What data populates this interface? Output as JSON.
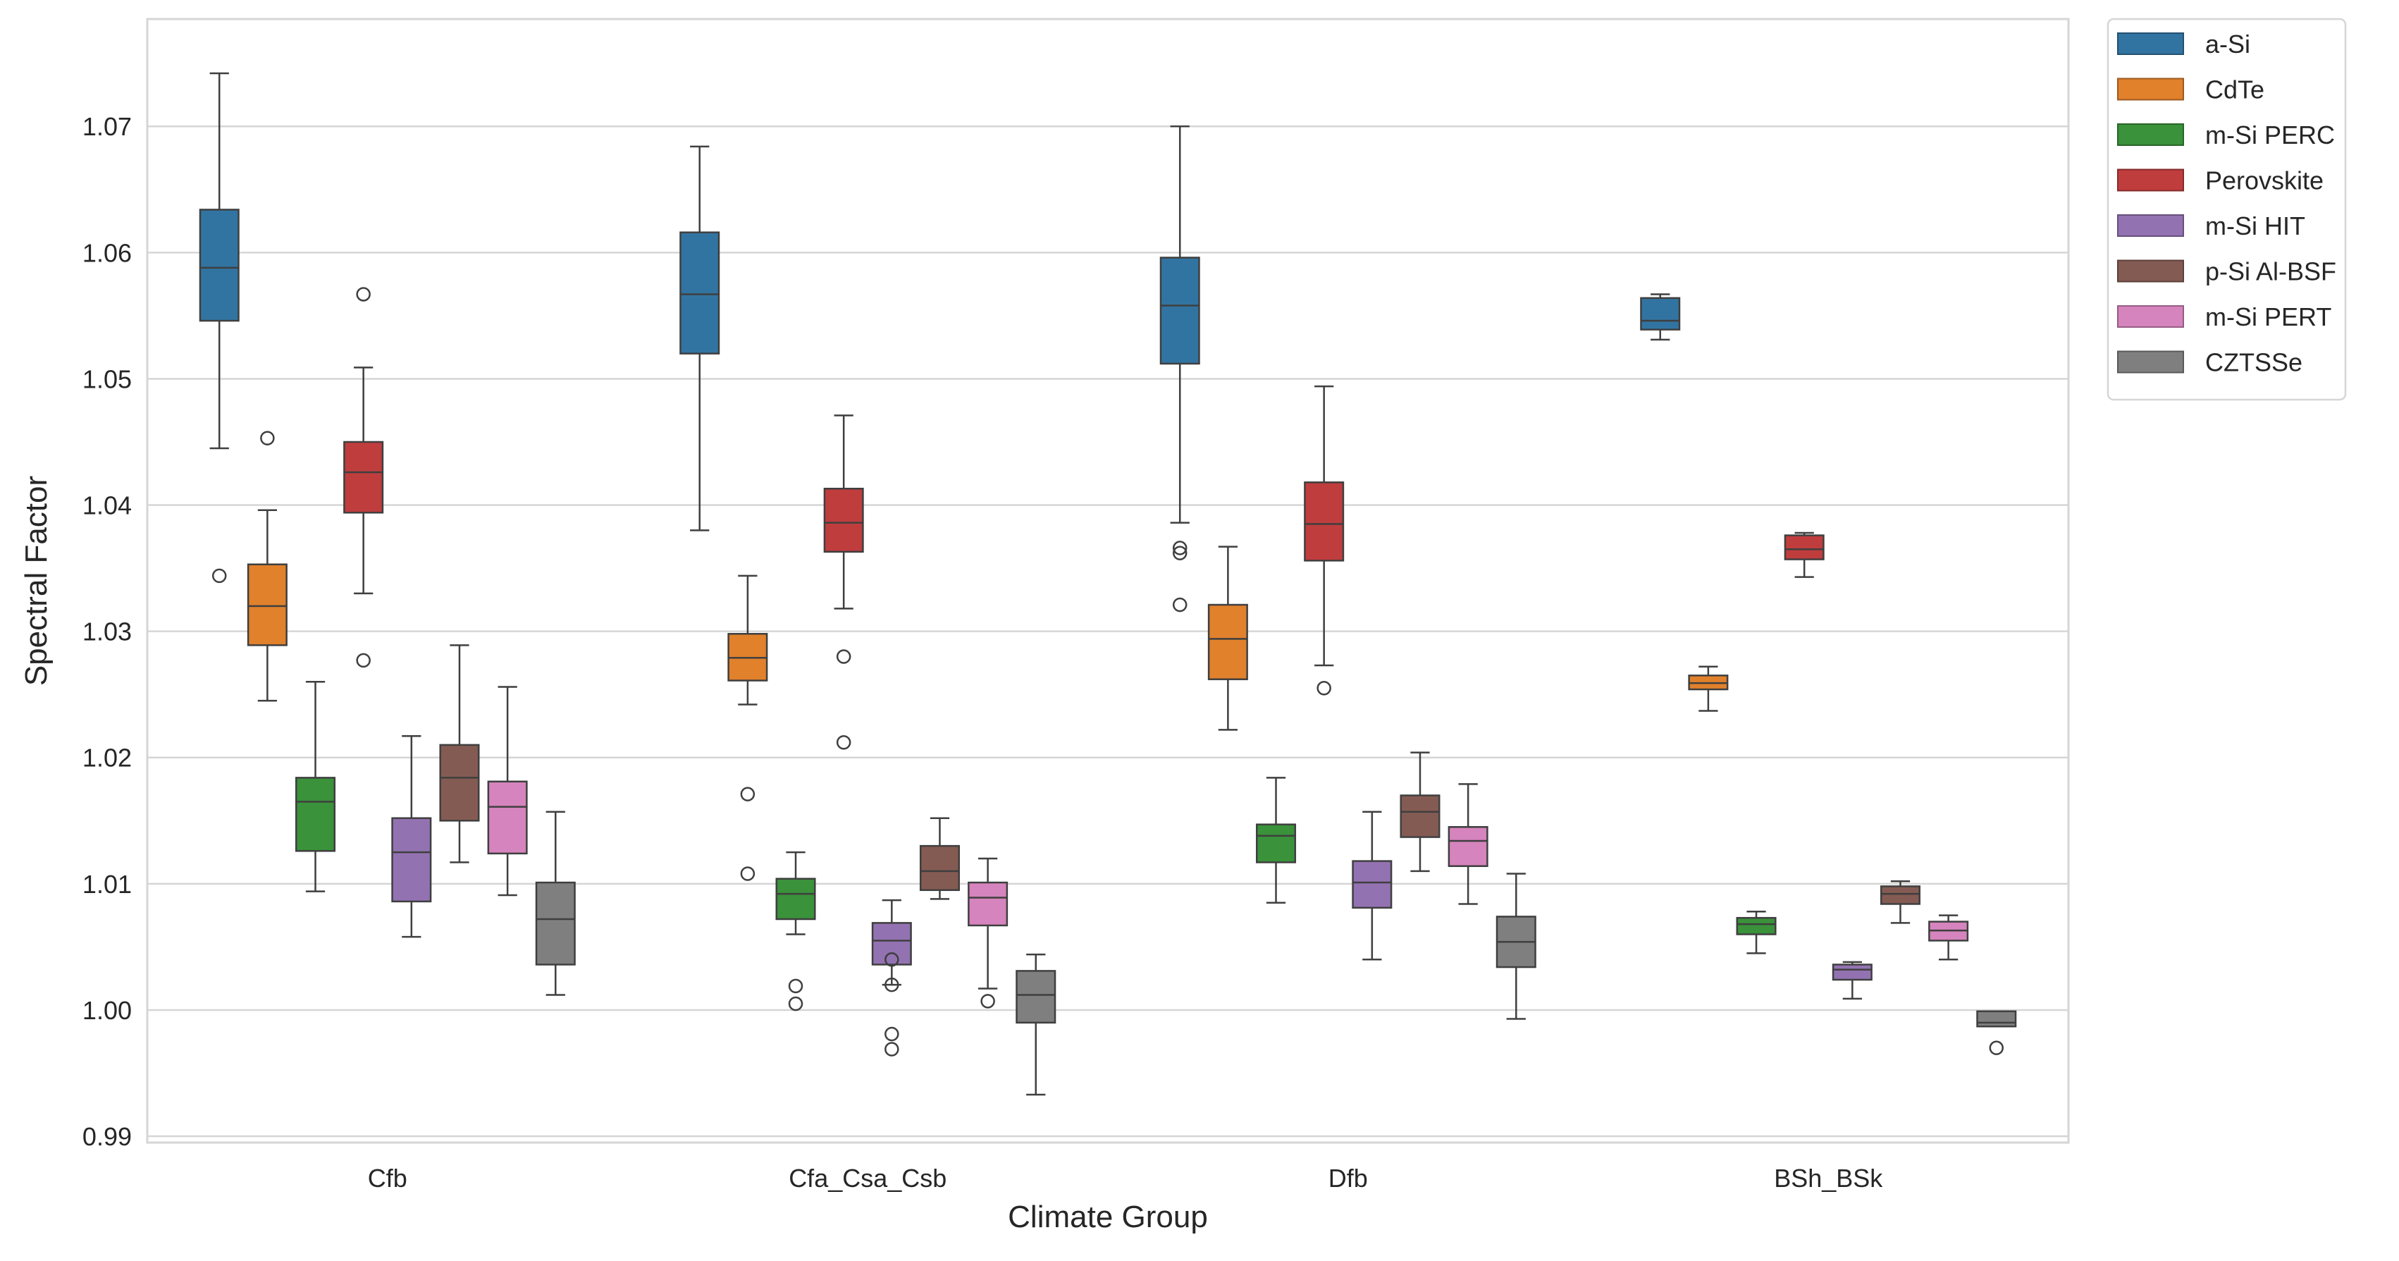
{
  "chart_data": {
    "type": "box",
    "title": "",
    "xlabel": "Climate Group",
    "ylabel": "Spectral Factor",
    "ylim": [
      0.9895,
      1.0785
    ],
    "yticks": [
      0.99,
      1.0,
      1.01,
      1.02,
      1.03,
      1.04,
      1.05,
      1.06,
      1.07
    ],
    "ytick_labels": [
      "0.99",
      "1.00",
      "1.01",
      "1.02",
      "1.03",
      "1.04",
      "1.05",
      "1.06",
      "1.07"
    ],
    "grid": true,
    "legend_position": "outside-top-right",
    "categories": [
      "Cfb",
      "Cfa_Csa_Csb",
      "Dfb",
      "BSh_BSk"
    ],
    "series": [
      {
        "name": "a-Si",
        "color": "#3274a1",
        "boxes": [
          {
            "whislo": 1.0445,
            "q1": 1.0546,
            "med": 1.0588,
            "q3": 1.0634,
            "whishi": 1.0742,
            "fliers": [
              1.0344
            ]
          },
          {
            "whislo": 1.038,
            "q1": 1.052,
            "med": 1.0567,
            "q3": 1.0616,
            "whishi": 1.0684,
            "fliers": []
          },
          {
            "whislo": 1.0386,
            "q1": 1.0512,
            "med": 1.0558,
            "q3": 1.0596,
            "whishi": 1.07,
            "fliers": [
              1.0366,
              1.0362,
              1.0321
            ]
          },
          {
            "whislo": 1.0531,
            "q1": 1.0539,
            "med": 1.0546,
            "q3": 1.0564,
            "whishi": 1.0567,
            "fliers": []
          }
        ]
      },
      {
        "name": "CdTe",
        "color": "#e1812c",
        "boxes": [
          {
            "whislo": 1.0245,
            "q1": 1.0289,
            "med": 1.032,
            "q3": 1.0353,
            "whishi": 1.0396,
            "fliers": [
              1.0453
            ]
          },
          {
            "whislo": 1.0242,
            "q1": 1.0261,
            "med": 1.0279,
            "q3": 1.0298,
            "whishi": 1.0344,
            "fliers": [
              1.0171,
              1.0108
            ]
          },
          {
            "whislo": 1.0222,
            "q1": 1.0262,
            "med": 1.0294,
            "q3": 1.0321,
            "whishi": 1.0367,
            "fliers": []
          },
          {
            "whislo": 1.0237,
            "q1": 1.0254,
            "med": 1.0259,
            "q3": 1.0265,
            "whishi": 1.0272,
            "fliers": []
          }
        ]
      },
      {
        "name": "m-Si PERC",
        "color": "#3a923a",
        "boxes": [
          {
            "whislo": 1.0094,
            "q1": 1.0126,
            "med": 1.0165,
            "q3": 1.0184,
            "whishi": 1.026,
            "fliers": []
          },
          {
            "whislo": 1.006,
            "q1": 1.0072,
            "med": 1.0092,
            "q3": 1.0104,
            "whishi": 1.0125,
            "fliers": [
              1.0019,
              1.0005
            ]
          },
          {
            "whislo": 1.0085,
            "q1": 1.0117,
            "med": 1.0138,
            "q3": 1.0147,
            "whishi": 1.0184,
            "fliers": []
          },
          {
            "whislo": 1.0045,
            "q1": 1.006,
            "med": 1.0068,
            "q3": 1.0073,
            "whishi": 1.0078,
            "fliers": []
          }
        ]
      },
      {
        "name": "Perovskite",
        "color": "#c03d3e",
        "boxes": [
          {
            "whislo": 1.033,
            "q1": 1.0394,
            "med": 1.0426,
            "q3": 1.045,
            "whishi": 1.0509,
            "fliers": [
              1.0567,
              1.0277
            ]
          },
          {
            "whislo": 1.0318,
            "q1": 1.0363,
            "med": 1.0386,
            "q3": 1.0413,
            "whishi": 1.0471,
            "fliers": [
              1.028,
              1.0212
            ]
          },
          {
            "whislo": 1.0273,
            "q1": 1.0356,
            "med": 1.0385,
            "q3": 1.0418,
            "whishi": 1.0494,
            "fliers": [
              1.0255
            ]
          },
          {
            "whislo": 1.0343,
            "q1": 1.0357,
            "med": 1.0365,
            "q3": 1.0376,
            "whishi": 1.0378,
            "fliers": []
          }
        ]
      },
      {
        "name": "m-Si HIT",
        "color": "#9372b2",
        "boxes": [
          {
            "whislo": 1.0058,
            "q1": 1.0086,
            "med": 1.0125,
            "q3": 1.0152,
            "whishi": 1.0217,
            "fliers": []
          },
          {
            "whislo": 1.002,
            "q1": 1.0036,
            "med": 1.0055,
            "q3": 1.0069,
            "whishi": 1.0087,
            "fliers": [
              1.004,
              1.002,
              0.9981,
              0.9969
            ]
          },
          {
            "whislo": 1.004,
            "q1": 1.0081,
            "med": 1.0101,
            "q3": 1.0118,
            "whishi": 1.0157,
            "fliers": []
          },
          {
            "whislo": 1.0009,
            "q1": 1.0024,
            "med": 1.0032,
            "q3": 1.0036,
            "whishi": 1.0038,
            "fliers": []
          }
        ]
      },
      {
        "name": "p-Si Al-BSF",
        "color": "#845b53",
        "boxes": [
          {
            "whislo": 1.0117,
            "q1": 1.015,
            "med": 1.0184,
            "q3": 1.021,
            "whishi": 1.0289,
            "fliers": []
          },
          {
            "whislo": 1.0088,
            "q1": 1.0095,
            "med": 1.011,
            "q3": 1.013,
            "whishi": 1.0152,
            "fliers": []
          },
          {
            "whislo": 1.011,
            "q1": 1.0137,
            "med": 1.0157,
            "q3": 1.017,
            "whishi": 1.0204,
            "fliers": []
          },
          {
            "whislo": 1.0069,
            "q1": 1.0084,
            "med": 1.0092,
            "q3": 1.0098,
            "whishi": 1.0102,
            "fliers": []
          }
        ]
      },
      {
        "name": "m-Si PERT",
        "color": "#d684bd",
        "boxes": [
          {
            "whislo": 1.0091,
            "q1": 1.0124,
            "med": 1.0161,
            "q3": 1.0181,
            "whishi": 1.0256,
            "fliers": []
          },
          {
            "whislo": 1.0017,
            "q1": 1.0067,
            "med": 1.0089,
            "q3": 1.0101,
            "whishi": 1.012,
            "fliers": [
              1.0007
            ]
          },
          {
            "whislo": 1.0084,
            "q1": 1.0114,
            "med": 1.0134,
            "q3": 1.0145,
            "whishi": 1.0179,
            "fliers": []
          },
          {
            "whislo": 1.004,
            "q1": 1.0055,
            "med": 1.0063,
            "q3": 1.007,
            "whishi": 1.0075,
            "fliers": []
          }
        ]
      },
      {
        "name": "CZTSSe",
        "color": "#7f7f7f",
        "boxes": [
          {
            "whislo": 1.0012,
            "q1": 1.0036,
            "med": 1.0072,
            "q3": 1.0101,
            "whishi": 1.0157,
            "fliers": []
          },
          {
            "whislo": 0.9933,
            "q1": 0.999,
            "med": 1.0012,
            "q3": 1.0031,
            "whishi": 1.0044,
            "fliers": []
          },
          {
            "whislo": 0.9993,
            "q1": 1.0034,
            "med": 1.0054,
            "q3": 1.0074,
            "whishi": 1.0108,
            "fliers": []
          },
          {
            "whislo": 0.9987,
            "q1": 0.9987,
            "med": 0.999,
            "q3": 0.9999,
            "whishi": 0.9999,
            "fliers": [
              0.997
            ]
          }
        ]
      }
    ]
  }
}
